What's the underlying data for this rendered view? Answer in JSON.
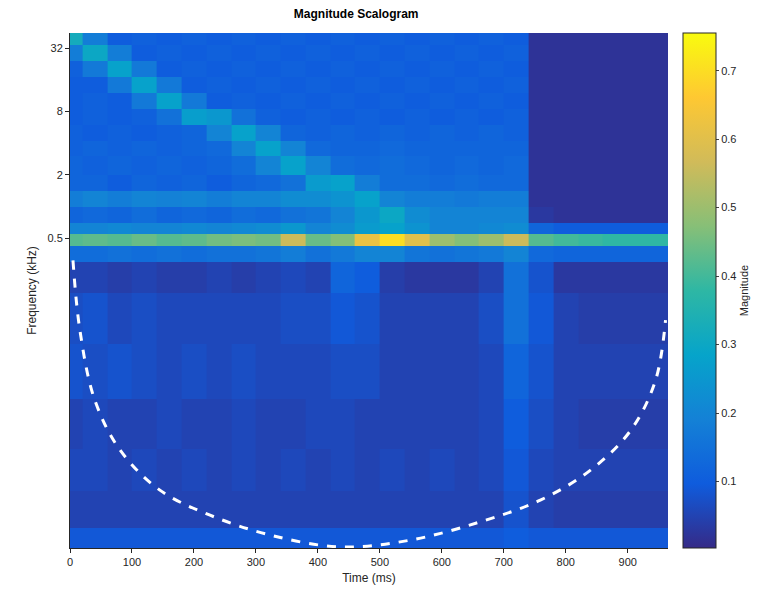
{
  "chart_data": {
    "type": "heatmap",
    "title": "Magnitude Scalogram",
    "x_label": "Time (ms)",
    "y_label": "Frequency (kHz)",
    "log": "y",
    "grid": false,
    "xlim": [
      0,
      965
    ],
    "ylim": [
      0.000576,
      44.5
    ],
    "xticks": [
      0,
      100,
      200,
      300,
      400,
      500,
      600,
      700,
      800,
      900
    ],
    "yticks": [
      0.5,
      2,
      8,
      32
    ],
    "x": [
      0,
      40,
      80,
      120,
      160,
      200,
      240,
      280,
      320,
      360,
      400,
      440,
      480,
      520,
      560,
      600,
      640,
      680,
      720,
      760,
      800,
      840,
      880,
      920,
      960
    ],
    "y_edges": [
      0.000576,
      0.0009,
      0.002,
      0.005,
      0.015,
      0.05,
      0.15,
      0.3,
      0.42,
      0.55,
      0.7,
      1.0,
      1.4,
      2.0,
      3.0,
      4.2,
      6,
      8.5,
      12,
      17,
      24,
      34,
      44.5
    ],
    "z": [
      [
        0.09,
        0.09,
        0.09,
        0.09,
        0.09,
        0.09,
        0.09,
        0.09,
        0.09,
        0.09,
        0.09,
        0.09,
        0.09,
        0.09,
        0.09,
        0.09,
        0.09,
        0.09,
        0.1,
        0.09,
        0.09,
        0.09,
        0.09,
        0.09,
        0.09
      ],
      [
        0.05,
        0.05,
        0.05,
        0.05,
        0.05,
        0.05,
        0.05,
        0.05,
        0.05,
        0.05,
        0.05,
        0.05,
        0.05,
        0.05,
        0.05,
        0.05,
        0.05,
        0.05,
        0.08,
        0.05,
        0.04,
        0.04,
        0.04,
        0.04,
        0.04
      ],
      [
        0.06,
        0.06,
        0.05,
        0.06,
        0.05,
        0.06,
        0.05,
        0.06,
        0.05,
        0.06,
        0.05,
        0.06,
        0.05,
        0.06,
        0.05,
        0.06,
        0.05,
        0.06,
        0.09,
        0.06,
        0.05,
        0.05,
        0.05,
        0.05,
        0.05
      ],
      [
        0.05,
        0.06,
        0.05,
        0.05,
        0.06,
        0.05,
        0.05,
        0.06,
        0.05,
        0.05,
        0.06,
        0.06,
        0.05,
        0.05,
        0.05,
        0.05,
        0.05,
        0.06,
        0.1,
        0.07,
        0.05,
        0.04,
        0.04,
        0.04,
        0.04
      ],
      [
        0.08,
        0.07,
        0.08,
        0.07,
        0.06,
        0.07,
        0.06,
        0.07,
        0.06,
        0.06,
        0.06,
        0.07,
        0.07,
        0.05,
        0.05,
        0.05,
        0.05,
        0.06,
        0.12,
        0.08,
        0.05,
        0.05,
        0.05,
        0.05,
        0.05
      ],
      [
        0.07,
        0.08,
        0.06,
        0.07,
        0.06,
        0.06,
        0.06,
        0.06,
        0.06,
        0.07,
        0.07,
        0.09,
        0.08,
        0.05,
        0.05,
        0.05,
        0.05,
        0.07,
        0.15,
        0.09,
        0.05,
        0.04,
        0.04,
        0.04,
        0.04
      ],
      [
        0.05,
        0.05,
        0.04,
        0.05,
        0.04,
        0.04,
        0.05,
        0.04,
        0.05,
        0.06,
        0.05,
        0.12,
        0.1,
        0.04,
        0.03,
        0.03,
        0.03,
        0.05,
        0.15,
        0.08,
        0.03,
        0.03,
        0.03,
        0.03,
        0.03
      ],
      [
        0.14,
        0.14,
        0.15,
        0.14,
        0.15,
        0.14,
        0.15,
        0.15,
        0.16,
        0.18,
        0.15,
        0.17,
        0.2,
        0.2,
        0.16,
        0.15,
        0.16,
        0.17,
        0.2,
        0.13,
        0.12,
        0.12,
        0.12,
        0.12,
        0.12
      ],
      [
        0.42,
        0.43,
        0.42,
        0.44,
        0.42,
        0.43,
        0.45,
        0.46,
        0.45,
        0.56,
        0.44,
        0.47,
        0.62,
        0.7,
        0.6,
        0.5,
        0.47,
        0.5,
        0.56,
        0.42,
        0.4,
        0.39,
        0.38,
        0.38,
        0.38
      ],
      [
        0.2,
        0.2,
        0.21,
        0.2,
        0.2,
        0.21,
        0.2,
        0.21,
        0.22,
        0.25,
        0.2,
        0.22,
        0.26,
        0.28,
        0.24,
        0.2,
        0.2,
        0.21,
        0.22,
        0.12,
        0.1,
        0.1,
        0.1,
        0.1,
        0.1
      ],
      [
        0.12,
        0.13,
        0.12,
        0.14,
        0.12,
        0.13,
        0.12,
        0.14,
        0.13,
        0.15,
        0.16,
        0.2,
        0.25,
        0.3,
        0.22,
        0.2,
        0.2,
        0.2,
        0.2,
        0.03,
        0.02,
        0.02,
        0.02,
        0.02,
        0.02
      ],
      [
        0.18,
        0.2,
        0.18,
        0.2,
        0.19,
        0.2,
        0.18,
        0.2,
        0.2,
        0.22,
        0.22,
        0.24,
        0.28,
        0.2,
        0.18,
        0.18,
        0.17,
        0.18,
        0.18,
        0.02,
        0.02,
        0.02,
        0.02,
        0.02,
        0.02
      ],
      [
        0.12,
        0.12,
        0.1,
        0.12,
        0.11,
        0.12,
        0.1,
        0.12,
        0.13,
        0.15,
        0.26,
        0.28,
        0.18,
        0.14,
        0.14,
        0.13,
        0.14,
        0.13,
        0.13,
        0.02,
        0.02,
        0.02,
        0.02,
        0.02,
        0.02
      ],
      [
        0.12,
        0.11,
        0.12,
        0.11,
        0.12,
        0.11,
        0.12,
        0.14,
        0.2,
        0.28,
        0.2,
        0.14,
        0.13,
        0.14,
        0.13,
        0.12,
        0.13,
        0.12,
        0.13,
        0.02,
        0.02,
        0.02,
        0.02,
        0.02,
        0.02
      ],
      [
        0.11,
        0.12,
        0.11,
        0.12,
        0.11,
        0.12,
        0.13,
        0.2,
        0.28,
        0.2,
        0.13,
        0.12,
        0.12,
        0.13,
        0.12,
        0.12,
        0.12,
        0.12,
        0.12,
        0.02,
        0.02,
        0.02,
        0.02,
        0.02,
        0.02
      ],
      [
        0.11,
        0.1,
        0.11,
        0.1,
        0.11,
        0.12,
        0.2,
        0.28,
        0.2,
        0.12,
        0.11,
        0.12,
        0.11,
        0.12,
        0.11,
        0.12,
        0.11,
        0.12,
        0.11,
        0.02,
        0.02,
        0.02,
        0.02,
        0.02,
        0.02
      ],
      [
        0.1,
        0.11,
        0.1,
        0.11,
        0.15,
        0.27,
        0.25,
        0.15,
        0.11,
        0.1,
        0.11,
        0.1,
        0.11,
        0.1,
        0.11,
        0.1,
        0.11,
        0.1,
        0.11,
        0.02,
        0.02,
        0.02,
        0.02,
        0.02,
        0.02
      ],
      [
        0.1,
        0.11,
        0.1,
        0.17,
        0.28,
        0.17,
        0.1,
        0.11,
        0.1,
        0.11,
        0.1,
        0.11,
        0.1,
        0.11,
        0.1,
        0.11,
        0.1,
        0.11,
        0.1,
        0.02,
        0.02,
        0.02,
        0.02,
        0.02,
        0.02
      ],
      [
        0.1,
        0.1,
        0.17,
        0.28,
        0.17,
        0.1,
        0.11,
        0.1,
        0.11,
        0.1,
        0.11,
        0.1,
        0.11,
        0.1,
        0.11,
        0.1,
        0.11,
        0.1,
        0.11,
        0.02,
        0.02,
        0.02,
        0.02,
        0.02,
        0.02
      ],
      [
        0.11,
        0.17,
        0.28,
        0.17,
        0.1,
        0.11,
        0.1,
        0.11,
        0.1,
        0.11,
        0.1,
        0.11,
        0.1,
        0.11,
        0.1,
        0.11,
        0.1,
        0.11,
        0.1,
        0.02,
        0.02,
        0.02,
        0.02,
        0.02,
        0.02
      ],
      [
        0.18,
        0.3,
        0.18,
        0.1,
        0.11,
        0.1,
        0.11,
        0.1,
        0.11,
        0.1,
        0.11,
        0.1,
        0.11,
        0.1,
        0.11,
        0.1,
        0.11,
        0.1,
        0.11,
        0.02,
        0.02,
        0.02,
        0.02,
        0.02,
        0.02
      ],
      [
        0.32,
        0.18,
        0.1,
        0.11,
        0.1,
        0.11,
        0.1,
        0.11,
        0.1,
        0.11,
        0.1,
        0.11,
        0.1,
        0.11,
        0.1,
        0.11,
        0.1,
        0.11,
        0.1,
        0.02,
        0.02,
        0.02,
        0.02,
        0.02,
        0.02
      ]
    ],
    "colorbar": {
      "title": "Magnitude",
      "range": [
        0.003,
        0.755
      ],
      "ticks": [
        0.1,
        0.2,
        0.3,
        0.4,
        0.5,
        0.6,
        0.7
      ]
    },
    "coi": {
      "x": [
        4.8,
        16,
        40,
        81,
        145,
        226,
        323,
        436,
        549,
        662,
        759,
        840,
        905,
        945,
        961
      ],
      "y": [
        0.309,
        0.067,
        0.0146,
        0.00488,
        0.00204,
        0.00118,
        0.000765,
        0.00059,
        0.000684,
        0.00102,
        0.00164,
        0.00316,
        0.00756,
        0.0226,
        0.0836
      ],
      "color": "#ffffff",
      "line_style": "dashed"
    }
  }
}
